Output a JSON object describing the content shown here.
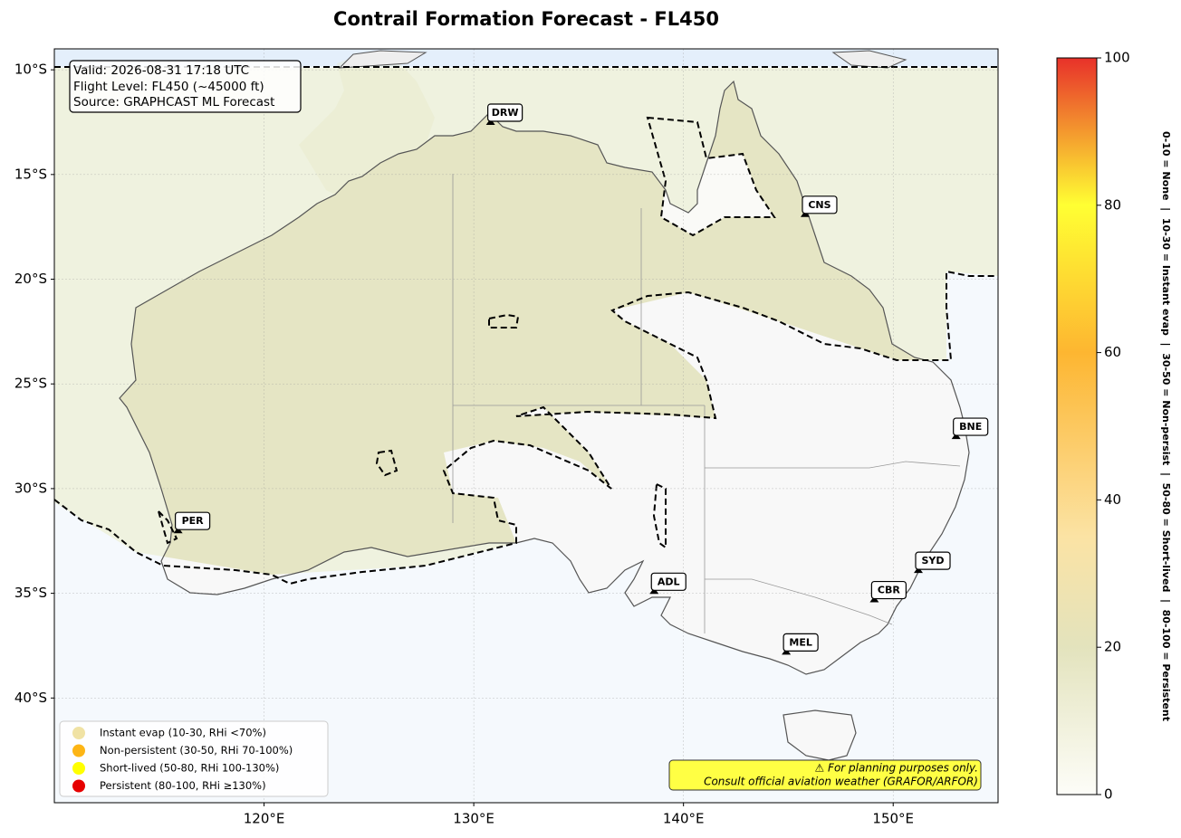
{
  "title": "Contrail Formation Forecast - FL450",
  "map": {
    "lon_range": [
      110,
      155
    ],
    "lat_range": [
      -45,
      -9
    ],
    "lon_ticks": [
      {
        "value": 120,
        "label": "120°E"
      },
      {
        "value": 130,
        "label": "130°E"
      },
      {
        "value": 140,
        "label": "140°E"
      },
      {
        "value": 150,
        "label": "150°E"
      }
    ],
    "lat_ticks": [
      {
        "value": -10,
        "label": "10°S"
      },
      {
        "value": -15,
        "label": "15°S"
      },
      {
        "value": -20,
        "label": "20°S"
      },
      {
        "value": -25,
        "label": "25°S"
      },
      {
        "value": -30,
        "label": "30°S"
      },
      {
        "value": -35,
        "label": "35°S"
      },
      {
        "value": -40,
        "label": "40°S"
      }
    ],
    "grid": true
  },
  "info_box": [
    "Valid: 2026-08-31 17:18 UTC",
    "Flight Level: FL450 (~45000 ft)",
    "Source: GRAPHCAST ML Forecast"
  ],
  "cities": [
    {
      "label": "DRW",
      "lon": 130.8,
      "lat": -12.5
    },
    {
      "label": "CNS",
      "lon": 145.8,
      "lat": -16.9
    },
    {
      "label": "BNE",
      "lon": 153.0,
      "lat": -27.5
    },
    {
      "label": "PER",
      "lon": 115.9,
      "lat": -32.0
    },
    {
      "label": "ADL",
      "lon": 138.6,
      "lat": -34.9
    },
    {
      "label": "SYD",
      "lon": 151.2,
      "lat": -33.9
    },
    {
      "label": "CBR",
      "lon": 149.1,
      "lat": -35.3
    },
    {
      "label": "MEL",
      "lon": 144.9,
      "lat": -37.8
    }
  ],
  "legend": [
    {
      "label": "Instant evap (10-30, RHi <70%)",
      "color": "#f0e2a4"
    },
    {
      "label": "Non-persistent (30-50, RHi 70-100%)",
      "color": "#fdb515"
    },
    {
      "label": "Short-lived (50-80, RHi 100-130%)",
      "color": "#ffff00"
    },
    {
      "label": "Persistent (80-100, RHi ≥130%)",
      "color": "#e60000"
    }
  ],
  "disclaimer": [
    "⚠ For planning purposes only.",
    "Consult official aviation weather (GRAFOR/ARFOR)"
  ],
  "colorbar": {
    "range": [
      0,
      100
    ],
    "ticks": [
      0,
      20,
      40,
      60,
      80,
      100
    ],
    "label": "0-10 = None  |  10-30 = Instant evap  |  30-50 = Non-persist  |  50-80 = Short-lived  |  80-100 = Persistent",
    "stops": [
      {
        "value": 0,
        "color": "#fdfdf8"
      },
      {
        "value": 20,
        "color": "#e3e3bd"
      },
      {
        "value": 35,
        "color": "#fbe3a4"
      },
      {
        "value": 60,
        "color": "#fdb631"
      },
      {
        "value": 80,
        "color": "#ffff33"
      },
      {
        "value": 100,
        "color": "#e8312a"
      }
    ]
  }
}
